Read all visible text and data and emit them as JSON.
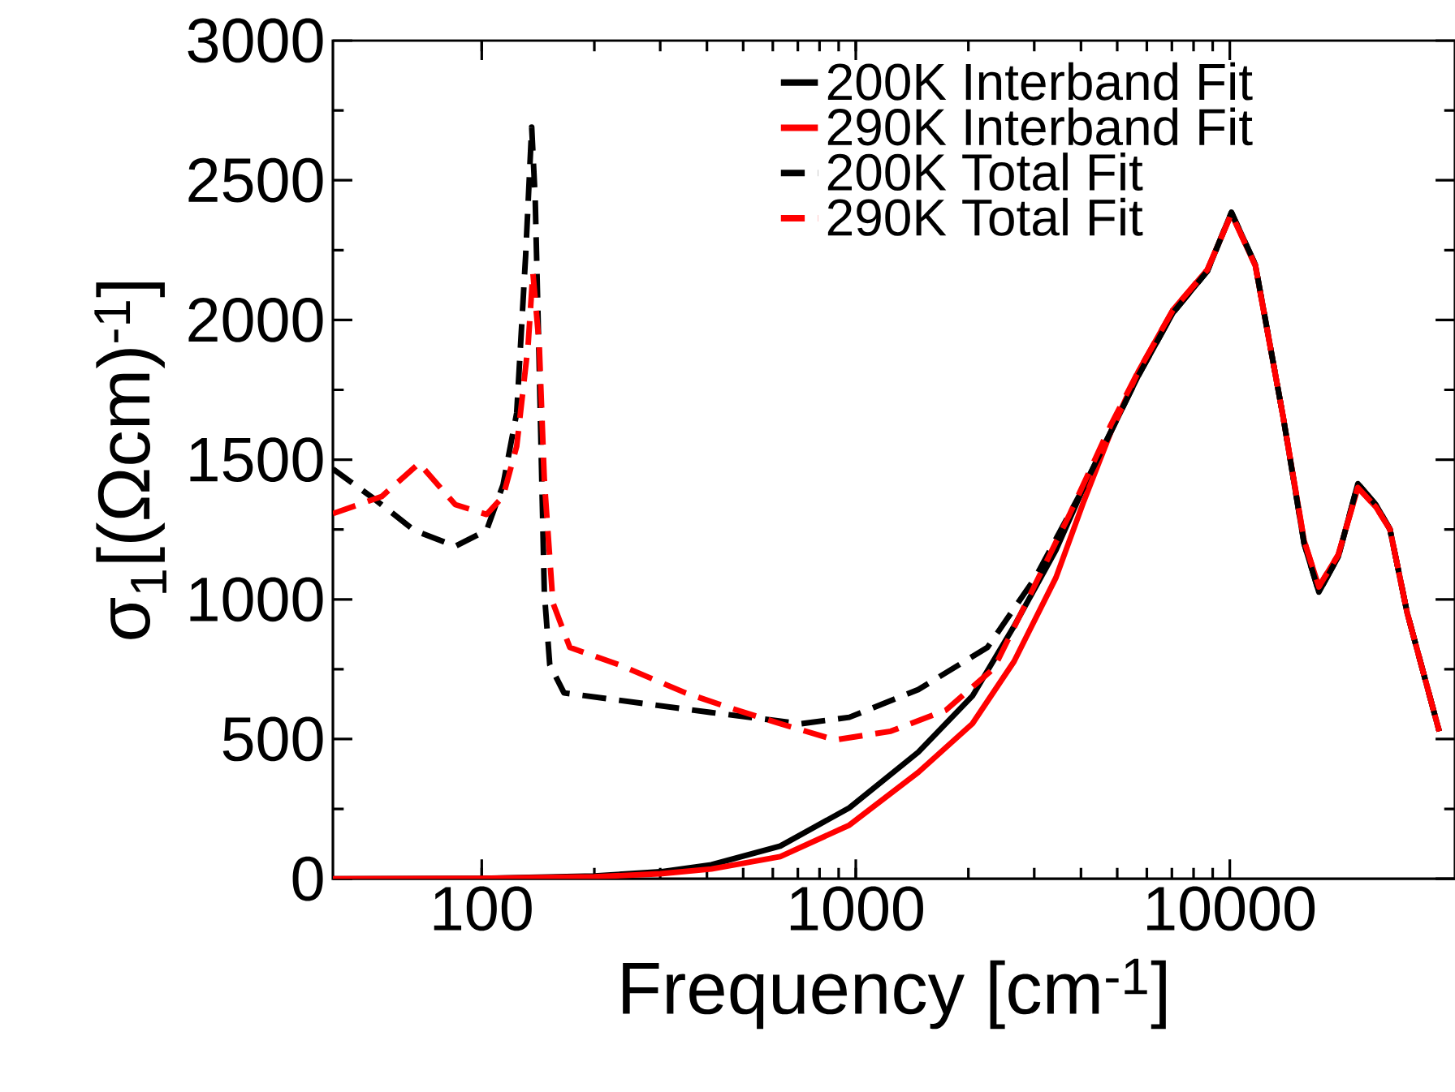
{
  "chart_data": {
    "type": "line",
    "xlabel": "Frequency [cm$^{-1}$]",
    "ylabel": "σ$_{1}$[(Ωcm)$^{-1}$]",
    "log": "x",
    "xlim": [
      40,
      40000
    ],
    "ylim": [
      0,
      3000
    ],
    "xticks": [
      100,
      1000,
      10000
    ],
    "yticks": [
      0,
      500,
      1000,
      1500,
      2000,
      2500,
      3000
    ],
    "grid": false,
    "legend": "top right",
    "marker": "none",
    "series": [
      {
        "name": "200K Interband Fit",
        "color": "#000000",
        "line_style": "solid",
        "x": [
          40,
          100,
          200,
          300,
          411,
          628,
          961,
          1469,
          2050,
          2650,
          3430,
          4070,
          5690,
          7040,
          8710,
          10100,
          11700,
          13900,
          15800,
          17300,
          19500,
          22000,
          24600,
          26800,
          29800,
          36300
        ],
        "values": [
          0,
          1,
          10,
          25,
          50,
          117,
          254,
          453,
          654,
          904,
          1177,
          1402,
          1800,
          2025,
          2175,
          2385,
          2198,
          1650,
          1200,
          1026,
          1153,
          1414,
          1338,
          1251,
          952,
          528
        ]
      },
      {
        "name": "290K Interband Fit",
        "color": "#ff0000",
        "line_style": "solid",
        "x": [
          40,
          100,
          200,
          300,
          411,
          628,
          961,
          1469,
          2050,
          2650,
          3430,
          4070,
          4810,
          5690,
          7040,
          8710,
          10100,
          11700,
          13900,
          15800,
          17300,
          19500,
          22000,
          24600,
          26800,
          29800,
          36300
        ],
        "values": [
          0,
          1,
          7,
          18,
          35,
          79,
          192,
          381,
          555,
          778,
          1078,
          1351,
          1600,
          1815,
          2035,
          2180,
          2380,
          2195,
          1650,
          1210,
          1045,
          1160,
          1400,
          1330,
          1251,
          952,
          528
        ]
      },
      {
        "name": "200K Total Fit",
        "color": "#000000",
        "line_style": "dashed",
        "x": [
          40,
          52,
          66,
          85,
          103,
          114,
          124,
          131,
          136,
          139,
          142.5,
          147,
          152,
          166,
          411,
          714,
          961,
          1469,
          2249,
          3020,
          4070,
          5690,
          7040,
          8710,
          10100,
          11700,
          13900,
          15800,
          17300,
          19500,
          22000,
          24600,
          26800,
          29800,
          36300
        ],
        "values": [
          1467,
          1356,
          1247,
          1190,
          1247,
          1410,
          1667,
          2228,
          2690,
          2430,
          1827,
          1025,
          766,
          665,
          595,
          555,
          578,
          677,
          828,
          1078,
          1402,
          1800,
          2025,
          2175,
          2385,
          2198,
          1650,
          1200,
          1026,
          1153,
          1414,
          1338,
          1251,
          952,
          528
        ]
      },
      {
        "name": "290K Total Fit",
        "color": "#ff0000",
        "line_style": "dashed",
        "x": [
          40,
          54,
          68,
          85,
          103,
          114,
          124,
          133,
          137,
          142.5,
          147,
          155,
          172,
          233,
          351,
          450,
          628,
          880,
          1240,
          1740,
          2340,
          2770,
          3720,
          4810,
          5690,
          7040,
          8710,
          10100,
          11700,
          13900,
          15800,
          17300,
          19500,
          22000,
          24600,
          26800,
          29800,
          36300
        ],
        "values": [
          1307,
          1368,
          1487,
          1339,
          1304,
          1368,
          1548,
          1908,
          2169,
          1908,
          1426,
          987,
          828,
          766,
          665,
          616,
          555,
          497,
          528,
          603,
          753,
          952,
          1301,
          1625,
          1815,
          2035,
          2180,
          2380,
          2195,
          1650,
          1210,
          1045,
          1160,
          1400,
          1330,
          1251,
          952,
          528
        ]
      }
    ]
  }
}
